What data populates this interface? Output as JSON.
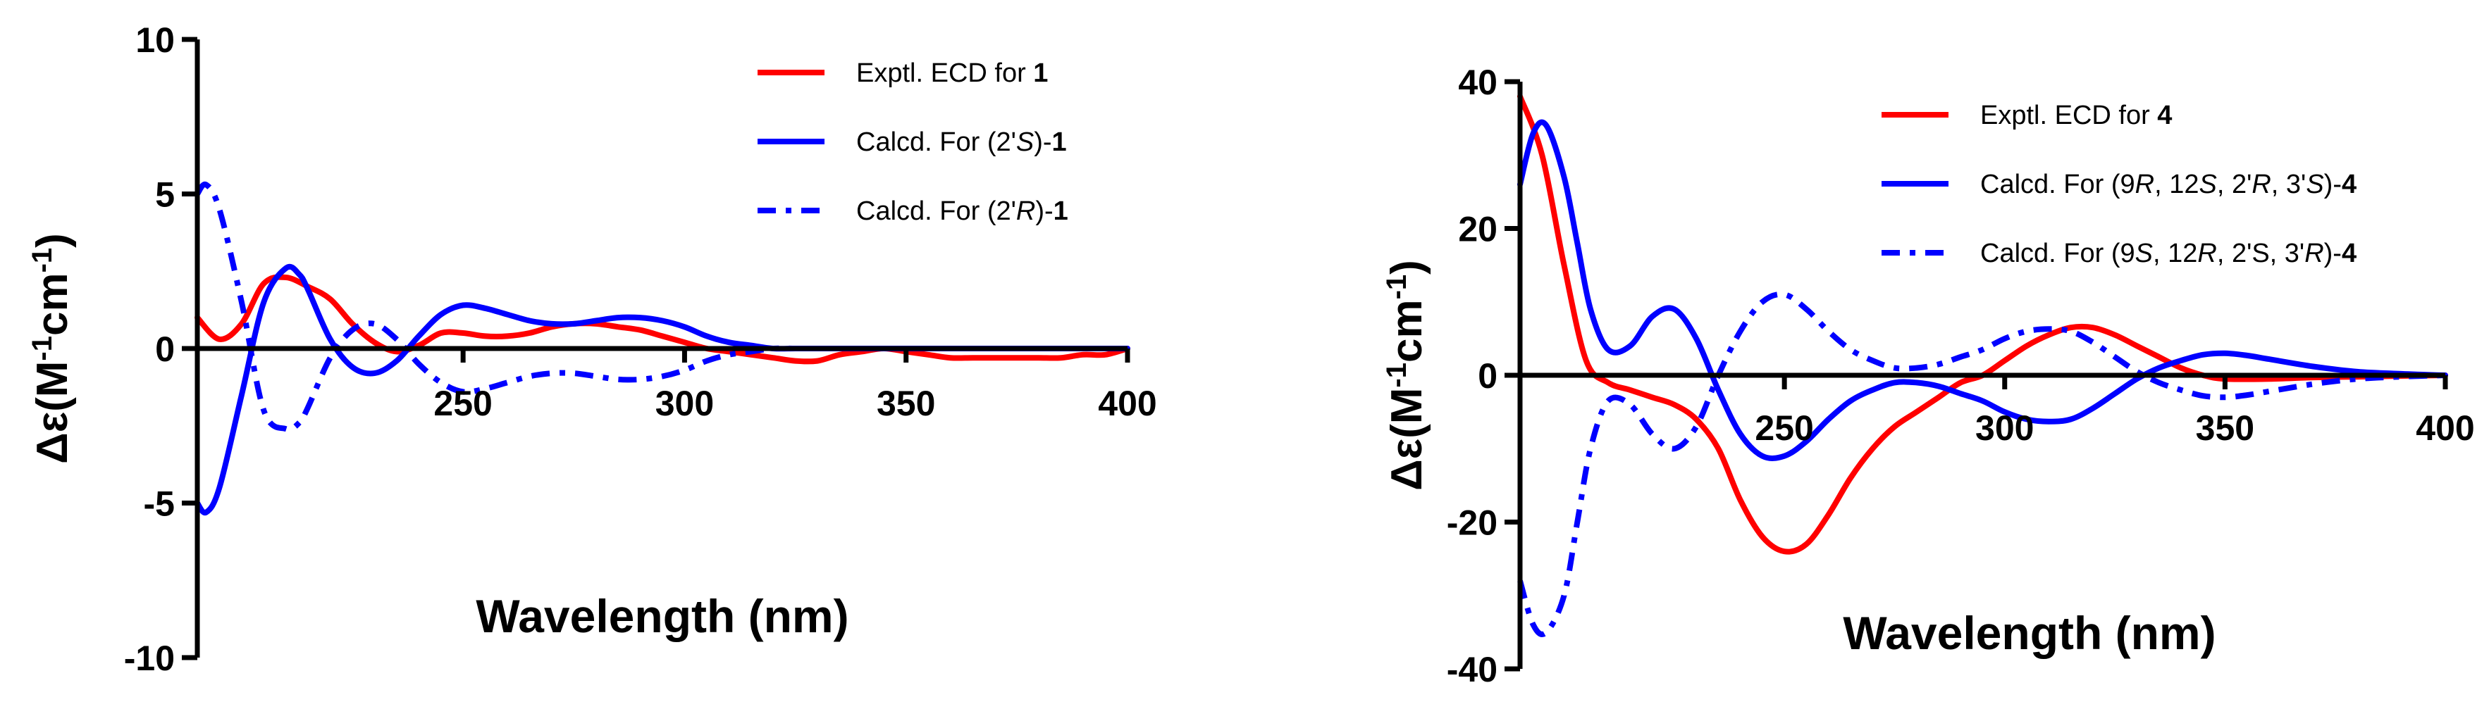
{
  "chart_data": [
    {
      "type": "line",
      "xlabel": "Wavelength (nm)",
      "ylabel": "Δε(M-1cm-1)",
      "xlim": [
        190,
        400
      ],
      "ylim": [
        -10,
        10
      ],
      "xticks": [
        "250",
        "300",
        "350",
        "400"
      ],
      "yticks": [
        "10",
        "5",
        "0",
        "-5",
        "-10"
      ],
      "legend_position": "top-right",
      "legend": [
        {
          "parts": [
            {
              "t": "Exptl. ECD for "
            },
            {
              "t": "1",
              "b": true
            }
          ]
        },
        {
          "parts": [
            {
              "t": "Calcd. For (2'"
            },
            {
              "t": "S",
              "i": true
            },
            {
              "t": ")-"
            },
            {
              "t": "1",
              "b": true
            }
          ]
        },
        {
          "parts": [
            {
              "t": "Calcd. For (2'"
            },
            {
              "t": "R",
              "i": true
            },
            {
              "t": ")-"
            },
            {
              "t": "1",
              "b": true
            }
          ]
        }
      ],
      "series": [
        {
          "color": "#ff0000",
          "dash": "solid",
          "x": [
            190,
            195,
            200,
            205,
            210,
            215,
            220,
            225,
            230,
            235,
            240,
            245,
            250,
            255,
            260,
            265,
            270,
            275,
            280,
            285,
            290,
            295,
            300,
            305,
            310,
            315,
            320,
            325,
            330,
            335,
            340,
            345,
            350,
            355,
            360,
            365,
            370,
            375,
            380,
            385,
            390,
            395,
            400
          ],
          "y": [
            1.0,
            0.3,
            0.8,
            2.1,
            2.3,
            2.0,
            1.6,
            0.8,
            0.2,
            -0.1,
            0.1,
            0.5,
            0.5,
            0.4,
            0.4,
            0.5,
            0.7,
            0.8,
            0.8,
            0.7,
            0.6,
            0.4,
            0.2,
            0.0,
            -0.1,
            -0.2,
            -0.3,
            -0.4,
            -0.4,
            -0.2,
            -0.1,
            0.0,
            -0.1,
            -0.2,
            -0.3,
            -0.3,
            -0.3,
            -0.3,
            -0.3,
            -0.3,
            -0.2,
            -0.2,
            0.0
          ]
        },
        {
          "color": "#0000ff",
          "dash": "solid",
          "x": [
            190,
            192,
            195,
            200,
            205,
            210,
            213,
            215,
            220,
            225,
            230,
            235,
            240,
            245,
            250,
            255,
            260,
            265,
            270,
            275,
            280,
            285,
            290,
            295,
            300,
            305,
            310,
            315,
            320,
            325,
            330,
            335,
            340,
            345,
            350,
            360,
            370,
            380,
            390,
            400
          ],
          "y": [
            -5.0,
            -5.3,
            -4.5,
            -1.5,
            1.5,
            2.6,
            2.4,
            1.9,
            0.3,
            -0.6,
            -0.8,
            -0.4,
            0.4,
            1.1,
            1.4,
            1.3,
            1.1,
            0.9,
            0.8,
            0.8,
            0.9,
            1.0,
            1.0,
            0.9,
            0.7,
            0.4,
            0.2,
            0.1,
            0.0,
            0.0,
            0.0,
            0.0,
            0.0,
            0.0,
            0.0,
            0.0,
            0.0,
            0.0,
            0.0,
            0.0
          ]
        },
        {
          "color": "#0000ff",
          "dash": "dashdot",
          "x": [
            190,
            192,
            195,
            200,
            205,
            210,
            213,
            215,
            220,
            225,
            230,
            235,
            240,
            245,
            250,
            255,
            260,
            265,
            270,
            275,
            280,
            285,
            290,
            295,
            300,
            305,
            310,
            315,
            320,
            325,
            330,
            335,
            340,
            345,
            350,
            360,
            370,
            380,
            390,
            400
          ],
          "y": [
            5.0,
            5.3,
            4.5,
            1.5,
            -2.0,
            -2.6,
            -2.4,
            -1.9,
            -0.3,
            0.6,
            0.8,
            0.3,
            -0.5,
            -1.1,
            -1.4,
            -1.3,
            -1.1,
            -0.9,
            -0.8,
            -0.8,
            -0.9,
            -1.0,
            -1.0,
            -0.9,
            -0.7,
            -0.4,
            -0.2,
            -0.1,
            0.0,
            0.0,
            0.0,
            0.0,
            0.0,
            0.0,
            0.0,
            0.0,
            0.0,
            0.0,
            0.0,
            0.0
          ]
        }
      ]
    },
    {
      "type": "line",
      "xlabel": "Wavelength (nm)",
      "ylabel": "Δε(M-1cm-1)",
      "xlim": [
        190,
        400
      ],
      "ylim": [
        -40,
        40
      ],
      "xticks": [
        "250",
        "300",
        "350",
        "400"
      ],
      "yticks": [
        "40",
        "20",
        "0",
        "-20",
        "-40"
      ],
      "legend_position": "top-right",
      "legend": [
        {
          "parts": [
            {
              "t": "Exptl. ECD for "
            },
            {
              "t": "4",
              "b": true
            }
          ]
        },
        {
          "parts": [
            {
              "t": "Calcd. For (9"
            },
            {
              "t": "R",
              "i": true
            },
            {
              "t": ", 12"
            },
            {
              "t": "S",
              "i": true
            },
            {
              "t": ", 2'"
            },
            {
              "t": "R",
              "i": true
            },
            {
              "t": ", 3'"
            },
            {
              "t": "S",
              "i": true
            },
            {
              "t": ")-"
            },
            {
              "t": "4",
              "b": true
            }
          ]
        },
        {
          "parts": [
            {
              "t": "Calcd. For (9"
            },
            {
              "t": "S",
              "i": true
            },
            {
              "t": ", 12"
            },
            {
              "t": "R",
              "i": true
            },
            {
              "t": ", 2'S, 3'"
            },
            {
              "t": "R",
              "i": true
            },
            {
              "t": ")-"
            },
            {
              "t": "4",
              "b": true
            }
          ]
        }
      ],
      "series": [
        {
          "color": "#ff0000",
          "dash": "solid",
          "x": [
            190,
            195,
            200,
            205,
            210,
            215,
            220,
            225,
            230,
            235,
            240,
            245,
            250,
            255,
            260,
            265,
            270,
            275,
            280,
            285,
            290,
            295,
            300,
            305,
            310,
            315,
            320,
            325,
            330,
            335,
            340,
            345,
            350,
            360,
            370,
            380,
            390,
            400
          ],
          "y": [
            38,
            30,
            15,
            2,
            -1,
            -2,
            -3,
            -4,
            -6,
            -10,
            -17,
            -22,
            -24,
            -23,
            -19,
            -14,
            -10,
            -7,
            -5,
            -3,
            -1,
            0,
            2,
            4,
            5.5,
            6.5,
            6.5,
            5.5,
            4,
            2.5,
            1,
            0,
            -0.5,
            -0.5,
            -0.3,
            -0.2,
            -0.1,
            0
          ]
        },
        {
          "color": "#0000ff",
          "dash": "solid",
          "x": [
            190,
            193,
            196,
            200,
            203,
            206,
            210,
            215,
            220,
            225,
            230,
            235,
            240,
            245,
            250,
            255,
            260,
            265,
            270,
            275,
            280,
            285,
            290,
            295,
            300,
            305,
            310,
            315,
            320,
            325,
            330,
            335,
            340,
            345,
            350,
            355,
            360,
            370,
            380,
            390,
            400
          ],
          "y": [
            26,
            33,
            34,
            27,
            18,
            9,
            3.5,
            4,
            8,
            9,
            5,
            -2,
            -8,
            -11,
            -11,
            -9,
            -6,
            -3.5,
            -2,
            -1,
            -1,
            -1.5,
            -2.5,
            -3.5,
            -5,
            -6,
            -6.3,
            -6,
            -4.5,
            -2.5,
            -0.5,
            1,
            2,
            2.8,
            3,
            2.7,
            2.2,
            1.2,
            0.5,
            0.2,
            0
          ]
        },
        {
          "color": "#0000ff",
          "dash": "dashdot",
          "x": [
            190,
            193,
            196,
            200,
            203,
            206,
            210,
            215,
            220,
            225,
            230,
            235,
            240,
            245,
            250,
            255,
            260,
            265,
            270,
            275,
            280,
            285,
            290,
            295,
            300,
            305,
            310,
            315,
            320,
            325,
            330,
            335,
            340,
            345,
            350,
            355,
            360,
            370,
            380,
            390,
            400
          ],
          "y": [
            -28,
            -34,
            -35,
            -30,
            -20,
            -10,
            -3.5,
            -4,
            -8,
            -10,
            -7,
            0,
            6,
            10,
            11,
            9,
            6,
            3.5,
            2,
            1,
            1,
            1.5,
            2.5,
            3.5,
            5,
            6,
            6.3,
            6,
            4.5,
            2.5,
            0.5,
            -1,
            -2,
            -2.8,
            -3,
            -2.7,
            -2.2,
            -1.2,
            -0.5,
            -0.2,
            0
          ]
        }
      ]
    }
  ]
}
